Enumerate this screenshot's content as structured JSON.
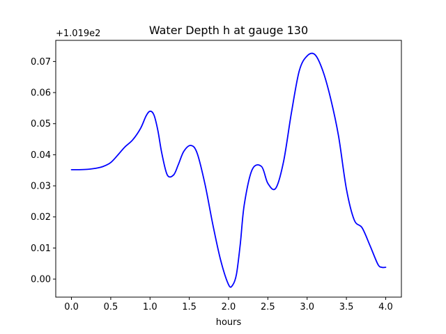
{
  "chart_data": {
    "type": "line",
    "title": "Water Depth h at gauge 130",
    "xlabel": "hours",
    "ylabel": "",
    "y_offset_label": "+1.019e2",
    "xlim": [
      -0.2,
      4.2
    ],
    "ylim": [
      -0.0058,
      0.0768
    ],
    "grid": false,
    "x_ticks": [
      0.0,
      0.5,
      1.0,
      1.5,
      2.0,
      2.5,
      3.0,
      3.5,
      4.0
    ],
    "x_tick_labels": [
      "0.0",
      "0.5",
      "1.0",
      "1.5",
      "2.0",
      "2.5",
      "3.0",
      "3.5",
      "4.0"
    ],
    "y_ticks": [
      0.0,
      0.01,
      0.02,
      0.03,
      0.04,
      0.05,
      0.06,
      0.07
    ],
    "y_tick_labels": [
      "0.00",
      "0.01",
      "0.02",
      "0.03",
      "0.04",
      "0.05",
      "0.06",
      "0.07"
    ],
    "series": [
      {
        "color": "#0000ff",
        "x": [
          0.0,
          0.1,
          0.2,
          0.3,
          0.4,
          0.5,
          0.6,
          0.68,
          0.78,
          0.88,
          0.95,
          1.0,
          1.05,
          1.1,
          1.15,
          1.22,
          1.3,
          1.36,
          1.43,
          1.52,
          1.6,
          1.7,
          1.8,
          1.9,
          2.0,
          2.05,
          2.1,
          2.15,
          2.2,
          2.3,
          2.42,
          2.5,
          2.6,
          2.7,
          2.8,
          2.9,
          3.0,
          3.1,
          3.2,
          3.3,
          3.4,
          3.5,
          3.6,
          3.7,
          3.8,
          3.9,
          3.95,
          4.0
        ],
        "y": [
          0.0352,
          0.0352,
          0.0353,
          0.0356,
          0.0362,
          0.0375,
          0.0402,
          0.0425,
          0.0448,
          0.0485,
          0.0525,
          0.054,
          0.0528,
          0.0478,
          0.0405,
          0.0335,
          0.0335,
          0.0368,
          0.0411,
          0.043,
          0.0405,
          0.0305,
          0.0175,
          0.006,
          -0.0018,
          -0.002,
          0.0015,
          0.0115,
          0.024,
          0.0352,
          0.0362,
          0.0308,
          0.0292,
          0.0378,
          0.0535,
          0.067,
          0.0718,
          0.0722,
          0.067,
          0.058,
          0.046,
          0.029,
          0.019,
          0.0165,
          0.0108,
          0.0048,
          0.0038,
          0.0038
        ]
      }
    ]
  }
}
